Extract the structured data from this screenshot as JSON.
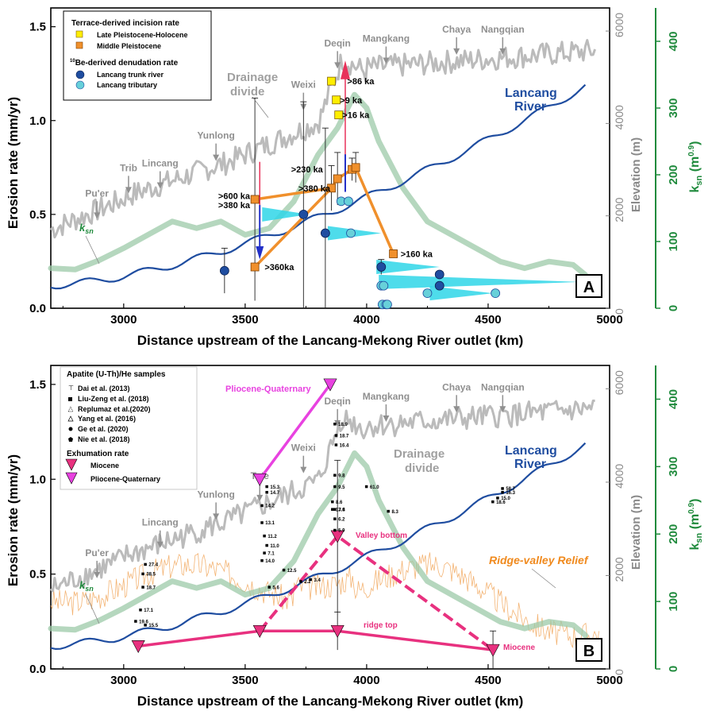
{
  "chart_data": [
    {
      "type": "scatter",
      "panel_label": "A",
      "xlabel": "Distance upstream of the Lancang-Mekong River outlet (km)",
      "ylabel": "Erosion rate (mm/yr)",
      "y2label": "Elevation (m)",
      "y3label": "k",
      "y3label_sub": "sn",
      "y3label_unit": " (m",
      "y3label_exp": "0.9",
      "y3label_close": ")",
      "xlim": [
        2700,
        5000
      ],
      "ylim": [
        0,
        1.6
      ],
      "y2lim": [
        0,
        6500
      ],
      "y3lim": [
        0,
        450
      ],
      "x_ticks": [
        "3000",
        "3500",
        "4000",
        "4500",
        "5000"
      ],
      "y_ticks": [
        "0.0",
        "0.5",
        "1.0",
        "1.5"
      ],
      "y2_ticks": [
        "0",
        "2000",
        "4000",
        "6000"
      ],
      "y3_ticks": [
        "0",
        "100",
        "200",
        "300",
        "400"
      ],
      "legend": {
        "title1": "Terrace-derived incision rate",
        "item1": "Late Pleistocene-Holocene",
        "item2": "Middle Pleistocene",
        "title2_sup": "10",
        "title2": "Be-derived denudation rate",
        "item3": "Lancang trunk river",
        "item4": "Lancang tributary"
      },
      "late_pleistocene_holocene": [
        {
          "x": 3855,
          "y": 1.21,
          "err": 0
        },
        {
          "x": 3875,
          "y": 1.11,
          "err": 0
        },
        {
          "x": 3885,
          "y": 1.03,
          "err": 0
        }
      ],
      "middle_pleistocene": [
        {
          "x": 3540,
          "y": 0.58,
          "err": 0.54
        },
        {
          "x": 3540,
          "y": 0.22,
          "err": 0.0
        },
        {
          "x": 3855,
          "y": 0.64,
          "err": 0.12
        },
        {
          "x": 3880,
          "y": 0.69,
          "err": 0.14
        },
        {
          "x": 3940,
          "y": 0.74,
          "err": 0.06
        },
        {
          "x": 3955,
          "y": 0.75,
          "err": 0.08
        },
        {
          "x": 4110,
          "y": 0.29,
          "err": 0.02
        }
      ],
      "trunk_river": [
        {
          "x": 3415,
          "y": 0.2,
          "err": 0.12
        },
        {
          "x": 3740,
          "y": 0.5,
          "err": 0.6
        },
        {
          "x": 3830,
          "y": 0.4,
          "err": 0.56
        },
        {
          "x": 4060,
          "y": 0.22,
          "err": 0.04
        },
        {
          "x": 4300,
          "y": 0.18,
          "err": 0
        },
        {
          "x": 4300,
          "y": 0.12,
          "err": 0
        }
      ],
      "tributary": [
        {
          "x": 3895,
          "y": 0.57
        },
        {
          "x": 3925,
          "y": 0.57
        },
        {
          "x": 3935,
          "y": 0.4
        },
        {
          "x": 4060,
          "y": 0.12
        },
        {
          "x": 4070,
          "y": 0.12
        },
        {
          "x": 4065,
          "y": 0.02
        },
        {
          "x": 4080,
          "y": 0.02
        },
        {
          "x": 4085,
          "y": 0.02
        },
        {
          "x": 4250,
          "y": 0.08
        },
        {
          "x": 4530,
          "y": 0.08
        }
      ],
      "age_labels": [
        ">86 ka",
        ">9 ka",
        ">16 ka",
        ">230 ka",
        ">380 ka",
        ">600 ka",
        ">380 ka",
        ">360ka",
        ">160 ka"
      ],
      "places": [
        "Pu'er",
        "Trib",
        "Lincang",
        "Yunlong",
        "Weixi",
        "Deqin",
        "Mangkang",
        "Chaya",
        "Nangqian"
      ],
      "divide_label_1": "Drainage",
      "divide_label_2": "divide",
      "river_label_1": "Lancang",
      "river_label_2": "River",
      "ksn_label": "k",
      "ksn_label_sub": "sn"
    },
    {
      "type": "scatter",
      "panel_label": "B",
      "xlabel": "Distance upstream of the Lancang-Mekong River outlet (km)",
      "ylabel": "Erosion rate (mm/yr)",
      "y2label": "Elevation (m)",
      "y3label": "k",
      "y3label_sub": "sn",
      "y3label_unit": " (m",
      "y3label_exp": "0.9",
      "y3label_close": ")",
      "xlim": [
        2700,
        5000
      ],
      "ylim": [
        0,
        1.6
      ],
      "y2lim": [
        0,
        6500
      ],
      "y3lim": [
        0,
        450
      ],
      "x_ticks": [
        "3000",
        "3500",
        "4000",
        "4500",
        "5000"
      ],
      "y_ticks": [
        "0.0",
        "0.5",
        "1.0",
        "1.5"
      ],
      "y2_ticks": [
        "0",
        "2000",
        "4000",
        "6000"
      ],
      "y3_ticks": [
        "0",
        "100",
        "200",
        "300",
        "400"
      ],
      "legend": {
        "title1": "Apatite (U-Th)/He samples",
        "item1": "Dai et al. (2013)",
        "item2": "Liu-Zeng et al. (2018)",
        "item3": "Replumaz et al.(2020)",
        "item4": "Yang et al. (2016)",
        "item5": "Ge et al. (2020)",
        "item6": "Nie et al. (2018)",
        "title2": "Exhumation rate",
        "item7": "Miocene",
        "item8": "Pliocene-Quaternary"
      },
      "miocene_ridge_top": [
        {
          "x": 3060,
          "y": 0.12
        },
        {
          "x": 3560,
          "y": 0.2
        },
        {
          "x": 3880,
          "y": 0.2,
          "err": 0.1
        },
        {
          "x": 4520,
          "y": 0.1,
          "err": 0.1
        }
      ],
      "miocene_valley_bottom": [
        {
          "x": 3560,
          "y": 0.2
        },
        {
          "x": 3880,
          "y": 0.7,
          "err": 0.4
        },
        {
          "x": 4520,
          "y": 0.1
        }
      ],
      "pliocene_quaternary": [
        {
          "x": 3560,
          "y": 1.0
        },
        {
          "x": 3850,
          "y": 1.5
        }
      ],
      "sample_ages": [
        {
          "x": 3870,
          "y": 1.29,
          "label": "18.9"
        },
        {
          "x": 3875,
          "y": 1.23,
          "label": "18.7"
        },
        {
          "x": 3875,
          "y": 1.18,
          "label": "16.4"
        },
        {
          "x": 3870,
          "y": 1.02,
          "label": "9.8"
        },
        {
          "x": 3870,
          "y": 0.96,
          "label": "9.5"
        },
        {
          "x": 3860,
          "y": 0.88,
          "label": "8.6"
        },
        {
          "x": 3860,
          "y": 0.84,
          "label": "17.4"
        },
        {
          "x": 3870,
          "y": 0.84,
          "label": "3.9"
        },
        {
          "x": 3870,
          "y": 0.79,
          "label": "6.2"
        },
        {
          "x": 3870,
          "y": 0.73,
          "label": "5.9"
        },
        {
          "x": 3590,
          "y": 0.96,
          "label": "15.3"
        },
        {
          "x": 3590,
          "y": 0.93,
          "label": "14.7"
        },
        {
          "x": 3570,
          "y": 0.86,
          "label": "14.2"
        },
        {
          "x": 3570,
          "y": 0.77,
          "label": "13.1"
        },
        {
          "x": 3580,
          "y": 0.7,
          "label": "11.2"
        },
        {
          "x": 3590,
          "y": 0.65,
          "label": "11.0"
        },
        {
          "x": 3580,
          "y": 0.61,
          "label": "7.1"
        },
        {
          "x": 3570,
          "y": 0.57,
          "label": "14.0"
        },
        {
          "x": 3660,
          "y": 0.52,
          "label": "12.5"
        },
        {
          "x": 3730,
          "y": 0.46,
          "label": "2.2"
        },
        {
          "x": 3770,
          "y": 0.47,
          "label": "3.4"
        },
        {
          "x": 3600,
          "y": 0.43,
          "label": "5.6"
        },
        {
          "x": 3090,
          "y": 0.55,
          "label": "27.4"
        },
        {
          "x": 3080,
          "y": 0.5,
          "label": "38.5"
        },
        {
          "x": 3080,
          "y": 0.43,
          "label": "18.7"
        },
        {
          "x": 3070,
          "y": 0.31,
          "label": "17.1"
        },
        {
          "x": 3050,
          "y": 0.25,
          "label": "19.6"
        },
        {
          "x": 3090,
          "y": 0.23,
          "label": "15.5"
        },
        {
          "x": 4000,
          "y": 0.96,
          "label": "61.0"
        },
        {
          "x": 4090,
          "y": 0.83,
          "label": "8.3"
        },
        {
          "x": 4560,
          "y": 0.95,
          "label": "58.7"
        },
        {
          "x": 4560,
          "y": 0.93,
          "label": "16.3"
        },
        {
          "x": 4540,
          "y": 0.9,
          "label": "15.0"
        },
        {
          "x": 4520,
          "y": 0.88,
          "label": "18.6"
        }
      ],
      "annotations": [
        "Pliocene-Quaternary",
        "Valley bottom",
        "ridge top",
        "Miocene",
        "Ridge-valley Relief"
      ],
      "places": [
        "Pu'er",
        "Lincang",
        "Yunlong",
        "Tu'e",
        "Weixi",
        "Deqin",
        "Mangkang",
        "Chaya",
        "Nangqian"
      ],
      "divide_label_1": "Drainage",
      "divide_label_2": "divide",
      "river_label_1": "Lancang",
      "river_label_2": "River",
      "ksn_label": "k",
      "ksn_label_sub": "sn"
    }
  ],
  "colors": {
    "river": "#1f4da0",
    "ksn": "#9cc9a8",
    "divide": "#bbbbbb",
    "terrace_middle": "#f0902c",
    "terrace_late": "#ffee00",
    "trunk": "#1f4da0",
    "tributary": "#67d0d9",
    "cyan_wedge": "#2fd6e8",
    "magenta": "#e8317f",
    "pink_q": "#e842e0",
    "relief": "#f0a050",
    "ksn_axis": "#1f8a3c"
  }
}
